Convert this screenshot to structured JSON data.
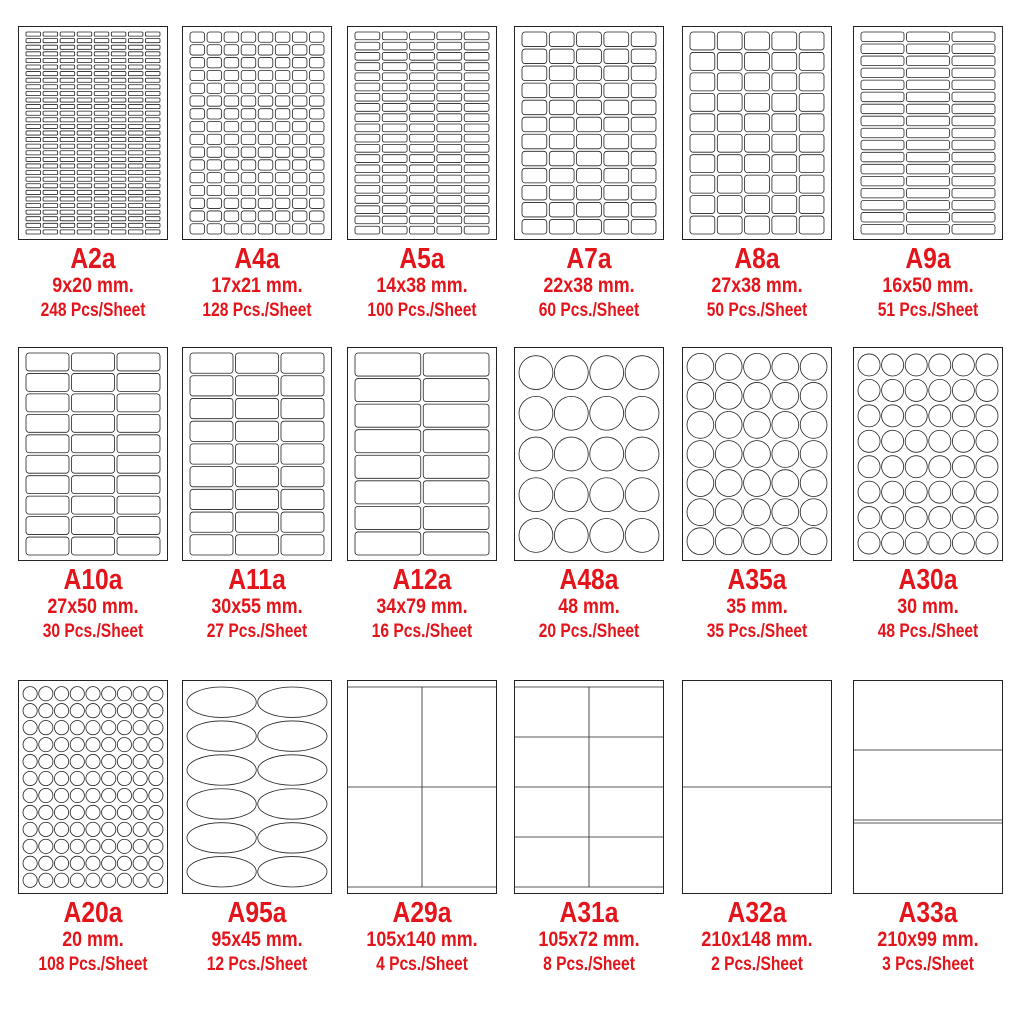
{
  "accent_color": "#e4141b",
  "items": [
    {
      "code": "A2a",
      "size": "9x20 mm.",
      "pcs": "248 Pcs/Sheet",
      "shape": "rect",
      "cols": 8,
      "rows": 31
    },
    {
      "code": "A4a",
      "size": "17x21 mm.",
      "pcs": "128 Pcs./Sheet",
      "shape": "rect",
      "cols": 8,
      "rows": 16
    },
    {
      "code": "A5a",
      "size": "14x38 mm.",
      "pcs": "100 Pcs./Sheet",
      "shape": "rect",
      "cols": 5,
      "rows": 20
    },
    {
      "code": "A7a",
      "size": "22x38 mm.",
      "pcs": "60 Pcs./Sheet",
      "shape": "rect",
      "cols": 5,
      "rows": 12
    },
    {
      "code": "A8a",
      "size": "27x38 mm.",
      "pcs": "50 Pcs./Sheet",
      "shape": "rect",
      "cols": 5,
      "rows": 10
    },
    {
      "code": "A9a",
      "size": "16x50 mm.",
      "pcs": "51 Pcs./Sheet",
      "shape": "rect",
      "cols": 3,
      "rows": 17
    },
    {
      "code": "A10a",
      "size": "27x50 mm.",
      "pcs": "30 Pcs./Sheet",
      "shape": "rect",
      "cols": 3,
      "rows": 10
    },
    {
      "code": "A11a",
      "size": "30x55 mm.",
      "pcs": "27 Pcs./Sheet",
      "shape": "rect",
      "cols": 3,
      "rows": 9
    },
    {
      "code": "A12a",
      "size": "34x79 mm.",
      "pcs": "16 Pcs./Sheet",
      "shape": "rect",
      "cols": 2,
      "rows": 8
    },
    {
      "code": "A48a",
      "size": "48 mm.",
      "pcs": "20 Pcs./Sheet",
      "shape": "circle",
      "cols": 4,
      "rows": 5
    },
    {
      "code": "A35a",
      "size": "35 mm.",
      "pcs": "35 Pcs./Sheet",
      "shape": "circle",
      "cols": 5,
      "rows": 7
    },
    {
      "code": "A30a",
      "size": "30 mm.",
      "pcs": "48 Pcs./Sheet",
      "shape": "circle",
      "cols": 6,
      "rows": 8
    },
    {
      "code": "A20a",
      "size": "20 mm.",
      "pcs": "108 Pcs./Sheet",
      "shape": "circle",
      "cols": 9,
      "rows": 12
    },
    {
      "code": "A95a",
      "size": "95x45 mm.",
      "pcs": "12 Pcs./Sheet",
      "shape": "ellipse",
      "cols": 2,
      "rows": 6
    },
    {
      "code": "A29a",
      "size": "105x140 mm.",
      "pcs": "4 Pcs./Sheet",
      "shape": "grid-strip",
      "cols": 2,
      "rows": 2
    },
    {
      "code": "A31a",
      "size": "105x72 mm.",
      "pcs": "8 Pcs./Sheet",
      "shape": "grid-strip",
      "cols": 2,
      "rows": 4
    },
    {
      "code": "A32a",
      "size": "210x148 mm.",
      "pcs": "2 Pcs./Sheet",
      "shape": "grid",
      "cols": 1,
      "rows": 2
    },
    {
      "code": "A33a",
      "size": "210x99 mm.",
      "pcs": "3 Pcs./Sheet",
      "shape": "grid-top",
      "cols": 1,
      "rows": 3
    }
  ]
}
